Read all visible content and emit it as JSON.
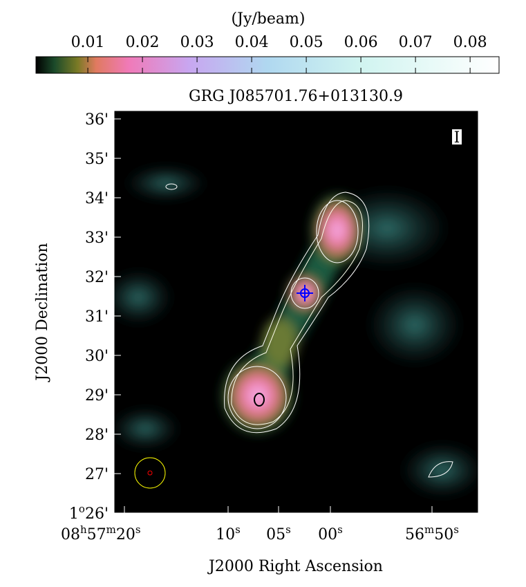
{
  "colorbar": {
    "unit": "(Jy/beam)",
    "range": [
      0.0005,
      0.0853
    ],
    "ticks": [
      0.01,
      0.02,
      0.03,
      0.04,
      0.05,
      0.06,
      0.07,
      0.08
    ]
  },
  "title": "GRG J085701.76+013130.9",
  "stokes": "I",
  "y_axis": {
    "label": "J2000 Declination",
    "ticks": [
      [
        "36'"
      ],
      [
        "35'"
      ],
      [
        "34'"
      ],
      [
        "33'"
      ],
      [
        "32'"
      ],
      [
        "31'"
      ],
      [
        "30'"
      ],
      [
        "29'"
      ],
      [
        "28'"
      ],
      [
        "27'"
      ],
      [
        "1",
        "o",
        "26'"
      ]
    ]
  },
  "x_axis": {
    "label": "J2000 Right Ascension",
    "ticks": [
      [
        "08",
        "h",
        "57",
        "m",
        "20",
        "s"
      ],
      [
        "10",
        "s"
      ],
      [
        "05",
        "s"
      ],
      [
        "00",
        "s"
      ],
      [
        "56",
        "m",
        "50",
        "s"
      ]
    ]
  }
}
